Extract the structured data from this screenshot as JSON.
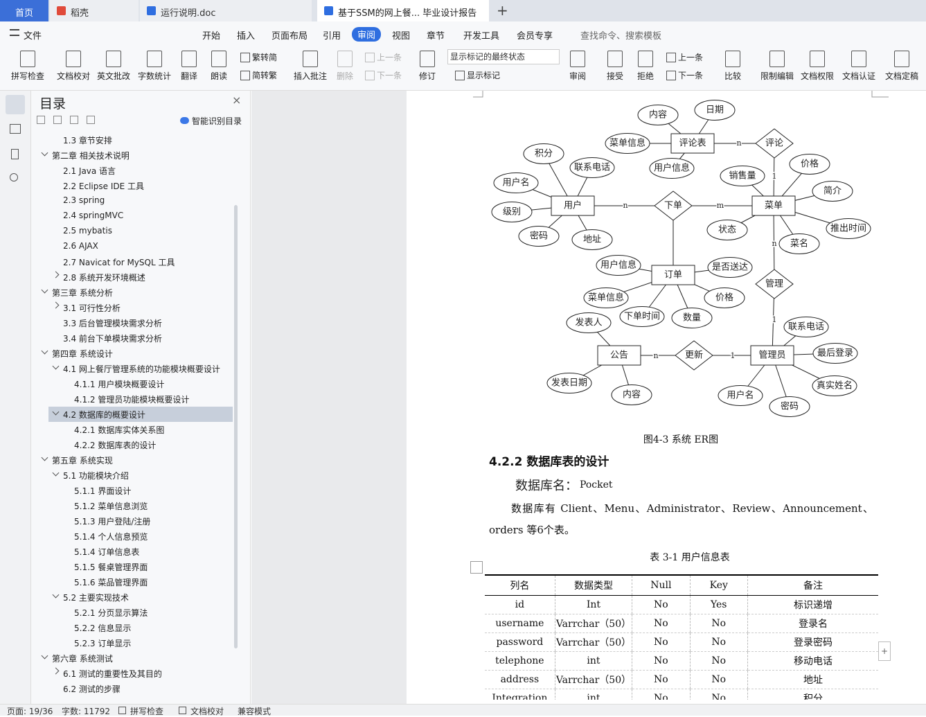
{
  "tabs": [
    "首页",
    "稻壳",
    "运行说明.doc",
    "基于SSM的网上餐... 毕业设计报告"
  ],
  "menu": {
    "items": [
      "文件",
      "开始",
      "插入",
      "页面布局",
      "引用",
      "审阅",
      "视图",
      "章节",
      "开发工具",
      "会员专享"
    ],
    "active_index": 5,
    "search": "查找命令、搜索模板"
  },
  "toolbar": [
    "拼写检查",
    "文档校对",
    "英文批改",
    "字数统计",
    "翻译",
    "朗读",
    "繁转简",
    "简转繁",
    "插入批注",
    "删除",
    "上一条",
    "下一条",
    "修订",
    "显示标记的最终状态",
    "显示标记",
    "审阅",
    "接受",
    "拒绝",
    "上一条",
    "下一条",
    "比较",
    "限制编辑",
    "文档权限",
    "文档认证",
    "文档定稿"
  ],
  "toc": {
    "title": "目录",
    "smart": "智能识别目录",
    "selected_index": 18,
    "items": [
      {
        "text": "1.3 章节安排",
        "level": 2
      },
      {
        "text": "第二章 相关技术说明",
        "level": 1,
        "toggle": "open"
      },
      {
        "text": "2.1 Java 语言",
        "level": 2
      },
      {
        "text": "2.2 Eclipse IDE 工具",
        "level": 2
      },
      {
        "text": "2.3 spring",
        "level": 2
      },
      {
        "text": "2.4 springMVC",
        "level": 2
      },
      {
        "text": "2.5 mybatis",
        "level": 2
      },
      {
        "text": "2.6 AJAX",
        "level": 2
      },
      {
        "text": "2.7 Navicat for MySQL 工具",
        "level": 2
      },
      {
        "text": "2.8 系统开发环境概述",
        "level": 2,
        "toggle": "closed"
      },
      {
        "text": "第三章 系统分析",
        "level": 1,
        "toggle": "open"
      },
      {
        "text": "3.1 可行性分析",
        "level": 2,
        "toggle": "closed"
      },
      {
        "text": "3.3 后台管理模块需求分析",
        "level": 2
      },
      {
        "text": "3.4 前台下单模块需求分析",
        "level": 2
      },
      {
        "text": "第四章 系统设计",
        "level": 1,
        "toggle": "open"
      },
      {
        "text": "4.1 网上餐厅管理系统的功能模块概要设计",
        "level": 2,
        "toggle": "open"
      },
      {
        "text": "4.1.1 用户模块概要设计",
        "level": 3
      },
      {
        "text": "4.1.2 管理员功能模块概要设计",
        "level": 3
      },
      {
        "text": "4.2 数据库的概要设计",
        "level": 2,
        "toggle": "open"
      },
      {
        "text": "4.2.1 数据库实体关系图",
        "level": 3
      },
      {
        "text": "4.2.2 数据库表的设计",
        "level": 3
      },
      {
        "text": "第五章 系统实现",
        "level": 1,
        "toggle": "open"
      },
      {
        "text": "5.1 功能模块介绍",
        "level": 2,
        "toggle": "open"
      },
      {
        "text": "5.1.1 界面设计",
        "level": 3
      },
      {
        "text": "5.1.2 菜单信息浏览",
        "level": 3
      },
      {
        "text": "5.1.3 用户登陆/注册",
        "level": 3
      },
      {
        "text": "5.1.4 个人信息预览",
        "level": 3
      },
      {
        "text": "5.1.4 订单信息表",
        "level": 3
      },
      {
        "text": "5.1.5 餐桌管理界面",
        "level": 3
      },
      {
        "text": "5.1.6 菜品管理界面",
        "level": 3
      },
      {
        "text": "5.2 主要实现技术",
        "level": 2,
        "toggle": "open"
      },
      {
        "text": "5.2.1 分页显示算法",
        "level": 3
      },
      {
        "text": "5.2.2 信息显示",
        "level": 3
      },
      {
        "text": "5.2.3 订单显示",
        "level": 3
      },
      {
        "text": "第六章 系统测试",
        "level": 1,
        "toggle": "open"
      },
      {
        "text": "6.1 测试的重要性及其目的",
        "level": 2,
        "toggle": "closed"
      },
      {
        "text": "6.2 测试的步骤",
        "level": 2
      }
    ]
  },
  "er": {
    "entities": [
      "评论表",
      "用户",
      "菜单",
      "订单",
      "公告",
      "管理员"
    ],
    "relations": [
      "评论",
      "下单",
      "管理",
      "更新"
    ],
    "attributes": [
      "内容",
      "日期",
      "菜单信息",
      "用户信息",
      "积分",
      "联系电话",
      "用户名",
      "级别",
      "密码",
      "地址",
      "价格",
      "销售量",
      "简介",
      "状态",
      "推出时间",
      "菜名",
      "用户信息",
      "是否送达",
      "菜单信息",
      "价格",
      "下单时间",
      "数量",
      "发表人",
      "联系电话",
      "最后登录",
      "发表日期",
      "内容",
      "真实姓名",
      "用户名",
      "密码"
    ],
    "cardinalities": [
      "n",
      "1",
      "n",
      "m",
      "n",
      "1",
      "n",
      "1"
    ]
  },
  "doc": {
    "caption": "图4-3 系统 ER图",
    "heading": "4.2.2 数据库表的设计",
    "db_label": "数据库名：",
    "db_name": "Pocket",
    "paragraph": "数据库有 Client、Menu、Administrator、Review、Announcement、orders 等6个表。",
    "table_caption": "表 3-1 用户信息表",
    "table": {
      "header": [
        "列名",
        "数据类型",
        "Null",
        "Key",
        "备注"
      ],
      "rows": [
        [
          "id",
          "Int",
          "No",
          "Yes",
          "标识递增"
        ],
        [
          "username",
          "Varrchar（50）",
          "No",
          "No",
          "登录名"
        ],
        [
          "password",
          "Varrchar（50）",
          "No",
          "No",
          "登录密码"
        ],
        [
          "telephone",
          "int",
          "No",
          "No",
          "移动电话"
        ],
        [
          "address",
          "Varrchar（50）",
          "No",
          "No",
          "地址"
        ],
        [
          "Integration",
          "int",
          "No",
          "No",
          "积分"
        ]
      ]
    }
  },
  "status": [
    "页面: 19/36",
    "字数: 11792",
    "拼写检查",
    "文档校对",
    "兼容模式"
  ]
}
